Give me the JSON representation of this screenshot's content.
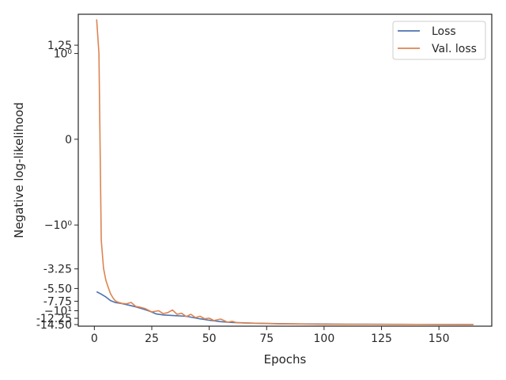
{
  "chart_data": {
    "type": "line",
    "title": "",
    "xlabel": "Epochs",
    "ylabel": "Negative log-likelihood",
    "xlim": [
      -7,
      173
    ],
    "x_ticks": [
      0,
      25,
      50,
      75,
      100,
      125,
      150
    ],
    "y_scale": "symlog",
    "y_ticks": [
      {
        "label": "1.25",
        "value": 1.25
      },
      {
        "label": "10⁰",
        "value": 1
      },
      {
        "label": "0",
        "value": 0
      },
      {
        "label": "−10⁰",
        "value": -1
      },
      {
        "label": "-3.25",
        "value": -3.25
      },
      {
        "label": "-5.50",
        "value": -5.5
      },
      {
        "label": "-7.75",
        "value": -7.75
      },
      {
        "label": "−10¹",
        "value": -10
      },
      {
        "label": "-12.25",
        "value": -12.25
      },
      {
        "label": "-14.50",
        "value": -14.5
      }
    ],
    "grid": false,
    "legend_position": "top-right",
    "series": [
      {
        "name": "Loss",
        "color": "#4c72b0",
        "x": [
          1,
          3,
          5,
          7,
          9,
          12,
          15,
          18,
          21,
          24,
          27,
          30,
          35,
          40,
          45,
          50,
          55,
          60,
          70,
          80,
          90,
          100,
          110,
          120,
          130,
          140,
          150,
          160,
          165
        ],
        "y": [
          -6.0,
          -6.4,
          -6.9,
          -7.6,
          -8.0,
          -8.25,
          -8.6,
          -9.0,
          -9.5,
          -10.1,
          -10.9,
          -11.2,
          -11.4,
          -11.6,
          -12.3,
          -12.9,
          -13.4,
          -13.7,
          -14.0,
          -14.15,
          -14.25,
          -14.3,
          -14.35,
          -14.38,
          -14.4,
          -14.42,
          -14.44,
          -14.45,
          -14.46
        ]
      },
      {
        "name": "Val. loss",
        "color": "#dd8452",
        "x": [
          1,
          2,
          3,
          4,
          5,
          6,
          7,
          8,
          9,
          10,
          12,
          14,
          16,
          18,
          20,
          22,
          25,
          28,
          30,
          32,
          34,
          36,
          38,
          40,
          42,
          44,
          46,
          48,
          50,
          52,
          55,
          58,
          60,
          62,
          65,
          70,
          75,
          80,
          85,
          90,
          95,
          100,
          110,
          120,
          130,
          140,
          150,
          160,
          165
        ],
        "y": [
          2.5,
          1.0,
          -1.5,
          -3.2,
          -4.4,
          -5.3,
          -6.3,
          -7.0,
          -7.6,
          -7.9,
          -8.2,
          -8.3,
          -8.0,
          -8.9,
          -9.1,
          -9.4,
          -10.3,
          -10.0,
          -10.8,
          -10.5,
          -9.8,
          -11.0,
          -10.7,
          -11.7,
          -11.0,
          -12.0,
          -11.6,
          -12.4,
          -12.2,
          -13.0,
          -12.5,
          -13.6,
          -13.3,
          -13.8,
          -13.9,
          -14.0,
          -14.1,
          -14.2,
          -14.25,
          -14.3,
          -14.35,
          -14.4,
          -14.4,
          -14.42,
          -14.44,
          -14.45,
          -14.46,
          -14.47,
          -14.48
        ]
      }
    ]
  }
}
